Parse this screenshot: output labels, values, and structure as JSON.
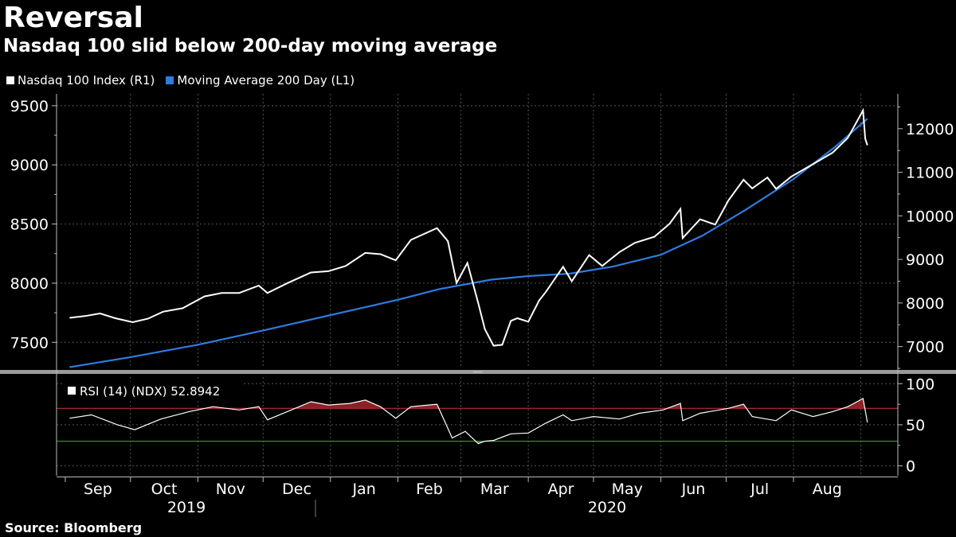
{
  "header": {
    "title": "Reversal",
    "subtitle": "Nasdaq 100 slid below 200-day moving average"
  },
  "footer": {
    "source": "Source: Bloomberg"
  },
  "colors": {
    "background": "#000000",
    "index_line": "#ffffff",
    "moving_average": "#2f7be0",
    "rsi_overbought": "#d9363e",
    "rsi_oversold": "#3fae49",
    "grid": "#555555"
  },
  "chart_data": [
    {
      "type": "line",
      "panel": "price",
      "legend_placement": "top-left",
      "grid": true,
      "x_labels": [
        "Sep",
        "Oct",
        "Nov",
        "Dec",
        "Jan",
        "Feb",
        "Mar",
        "Apr",
        "May",
        "Jun",
        "Jul",
        "Aug"
      ],
      "year_labels": [
        "2019",
        "2020"
      ],
      "left_axis": {
        "ticks": [
          7500,
          8000,
          8500,
          9000,
          9500
        ],
        "ylim": [
          7280,
          9600
        ]
      },
      "right_axis": {
        "ticks": [
          7000,
          8000,
          9000,
          10000,
          11000,
          12000
        ],
        "ylim": [
          6500,
          12800
        ]
      },
      "series": [
        {
          "name": "Nasdaq 100 Index (R1)",
          "axis": "right",
          "color": "#ffffff",
          "points": [
            [
              "2019-09-03",
              7660
            ],
            [
              "2019-09-10",
              7700
            ],
            [
              "2019-09-17",
              7760
            ],
            [
              "2019-09-24",
              7650
            ],
            [
              "2019-10-02",
              7560
            ],
            [
              "2019-10-09",
              7640
            ],
            [
              "2019-10-16",
              7800
            ],
            [
              "2019-10-25",
              7880
            ],
            [
              "2019-11-04",
              8150
            ],
            [
              "2019-11-12",
              8230
            ],
            [
              "2019-11-20",
              8230
            ],
            [
              "2019-11-29",
              8400
            ],
            [
              "2019-12-03",
              8230
            ],
            [
              "2019-12-12",
              8450
            ],
            [
              "2019-12-23",
              8700
            ],
            [
              "2019-12-31",
              8730
            ],
            [
              "2020-01-08",
              8850
            ],
            [
              "2020-01-17",
              9150
            ],
            [
              "2020-01-24",
              9120
            ],
            [
              "2020-01-31",
              8980
            ],
            [
              "2020-02-07",
              9450
            ],
            [
              "2020-02-19",
              9720
            ],
            [
              "2020-02-24",
              9420
            ],
            [
              "2020-02-28",
              8460
            ],
            [
              "2020-03-04",
              8920
            ],
            [
              "2020-03-09",
              7990
            ],
            [
              "2020-03-12",
              7400
            ],
            [
              "2020-03-16",
              7020
            ],
            [
              "2020-03-20",
              7040
            ],
            [
              "2020-03-24",
              7590
            ],
            [
              "2020-03-27",
              7650
            ],
            [
              "2020-04-01",
              7570
            ],
            [
              "2020-04-06",
              8060
            ],
            [
              "2020-04-09",
              8250
            ],
            [
              "2020-04-17",
              8830
            ],
            [
              "2020-04-21",
              8500
            ],
            [
              "2020-04-29",
              9100
            ],
            [
              "2020-05-05",
              8850
            ],
            [
              "2020-05-13",
              9170
            ],
            [
              "2020-05-20",
              9380
            ],
            [
              "2020-05-29",
              9520
            ],
            [
              "2020-06-05",
              9820
            ],
            [
              "2020-06-10",
              10160
            ],
            [
              "2020-06-11",
              9490
            ],
            [
              "2020-06-19",
              9920
            ],
            [
              "2020-06-26",
              9800
            ],
            [
              "2020-07-02",
              10350
            ],
            [
              "2020-07-09",
              10830
            ],
            [
              "2020-07-13",
              10630
            ],
            [
              "2020-07-20",
              10880
            ],
            [
              "2020-07-24",
              10620
            ],
            [
              "2020-07-31",
              10900
            ],
            [
              "2020-08-10",
              11190
            ],
            [
              "2020-08-19",
              11450
            ],
            [
              "2020-08-26",
              11790
            ],
            [
              "2020-09-02",
              12420
            ],
            [
              "2020-09-03",
              11770
            ],
            [
              "2020-09-04",
              11620
            ]
          ]
        },
        {
          "name": "Moving Average 200 Day (L1)",
          "axis": "left",
          "color": "#2f7be0",
          "points": [
            [
              "2019-09-03",
              7290
            ],
            [
              "2019-10-01",
              7375
            ],
            [
              "2019-11-01",
              7480
            ],
            [
              "2019-12-01",
              7600
            ],
            [
              "2020-01-01",
              7730
            ],
            [
              "2020-02-01",
              7860
            ],
            [
              "2020-02-20",
              7950
            ],
            [
              "2020-03-15",
              8030
            ],
            [
              "2020-04-01",
              8060
            ],
            [
              "2020-04-20",
              8080
            ],
            [
              "2020-05-10",
              8140
            ],
            [
              "2020-06-01",
              8240
            ],
            [
              "2020-06-20",
              8400
            ],
            [
              "2020-07-10",
              8620
            ],
            [
              "2020-08-01",
              8880
            ],
            [
              "2020-08-20",
              9150
            ],
            [
              "2020-09-04",
              9390
            ]
          ]
        }
      ]
    },
    {
      "type": "line",
      "panel": "rsi",
      "grid": true,
      "label": "RSI (14) (NDX) 52.8942",
      "y_ticks": [
        0,
        50,
        100
      ],
      "ylim": [
        -12,
        108
      ],
      "overbought": 70,
      "oversold": 30,
      "series": [
        {
          "name": "RSI (14) (NDX)",
          "color": "#ffffff",
          "points": [
            [
              "2019-09-03",
              58
            ],
            [
              "2019-09-13",
              62
            ],
            [
              "2019-09-25",
              50
            ],
            [
              "2019-10-03",
              44
            ],
            [
              "2019-10-15",
              57
            ],
            [
              "2019-10-28",
              66
            ],
            [
              "2019-11-08",
              72
            ],
            [
              "2019-11-20",
              68
            ],
            [
              "2019-11-29",
              72
            ],
            [
              "2019-12-03",
              56
            ],
            [
              "2019-12-13",
              67
            ],
            [
              "2019-12-23",
              78
            ],
            [
              "2019-12-31",
              74
            ],
            [
              "2020-01-10",
              76
            ],
            [
              "2020-01-17",
              80
            ],
            [
              "2020-01-24",
              72
            ],
            [
              "2020-01-31",
              58
            ],
            [
              "2020-02-07",
              72
            ],
            [
              "2020-02-19",
              75
            ],
            [
              "2020-02-26",
              34
            ],
            [
              "2020-03-03",
              42
            ],
            [
              "2020-03-09",
              27
            ],
            [
              "2020-03-12",
              30
            ],
            [
              "2020-03-16",
              31
            ],
            [
              "2020-03-24",
              39
            ],
            [
              "2020-04-01",
              40
            ],
            [
              "2020-04-09",
              52
            ],
            [
              "2020-04-17",
              62
            ],
            [
              "2020-04-21",
              55
            ],
            [
              "2020-05-01",
              60
            ],
            [
              "2020-05-13",
              57
            ],
            [
              "2020-05-22",
              64
            ],
            [
              "2020-06-02",
              68
            ],
            [
              "2020-06-10",
              76
            ],
            [
              "2020-06-11",
              55
            ],
            [
              "2020-06-19",
              64
            ],
            [
              "2020-07-02",
              70
            ],
            [
              "2020-07-09",
              75
            ],
            [
              "2020-07-13",
              60
            ],
            [
              "2020-07-24",
              55
            ],
            [
              "2020-07-31",
              68
            ],
            [
              "2020-08-10",
              60
            ],
            [
              "2020-08-19",
              66
            ],
            [
              "2020-08-26",
              72
            ],
            [
              "2020-09-02",
              82
            ],
            [
              "2020-09-04",
              52.8942
            ]
          ]
        }
      ]
    }
  ]
}
